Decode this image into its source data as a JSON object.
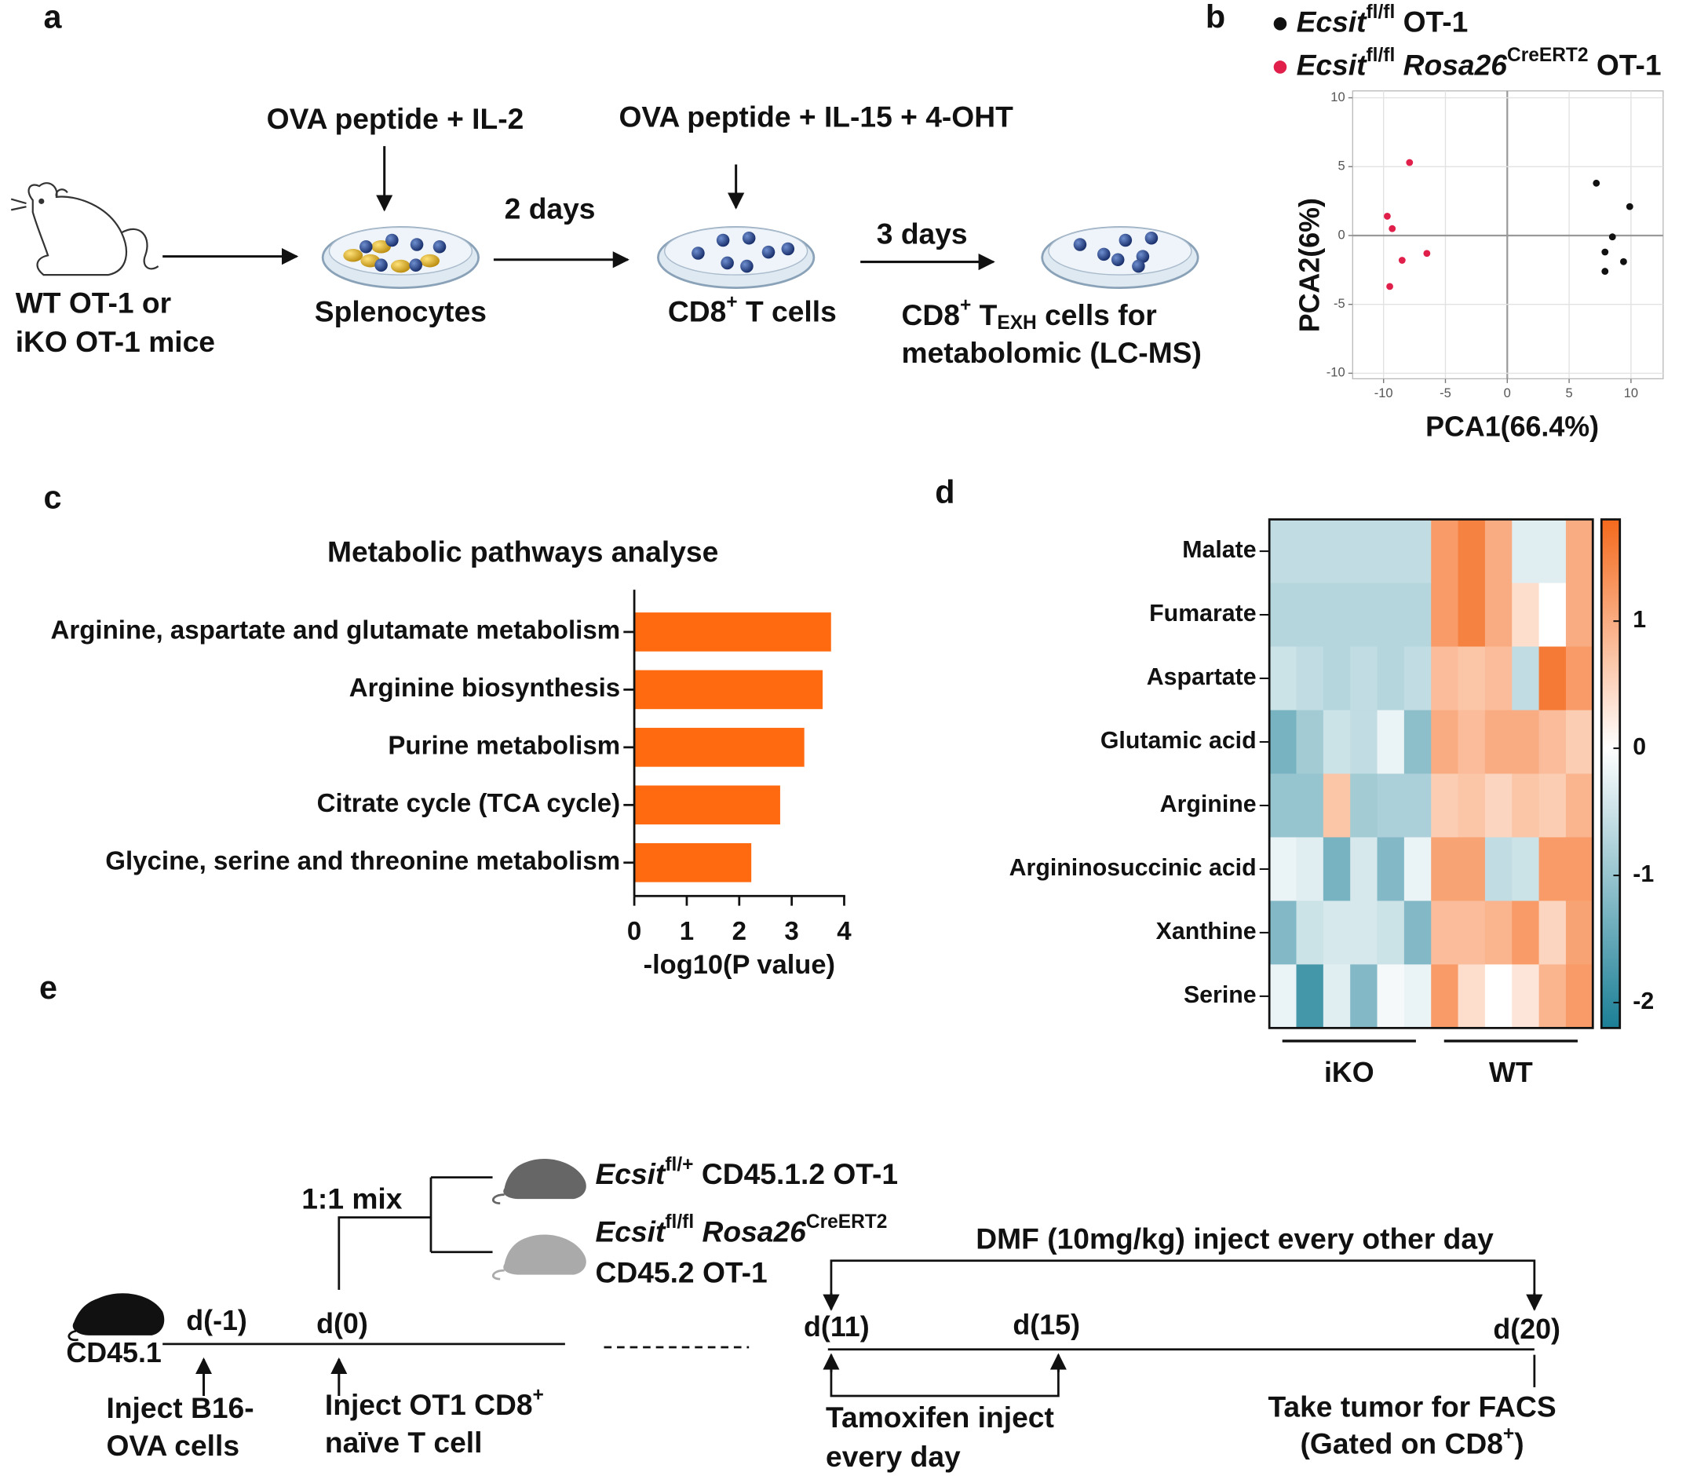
{
  "panel_labels": [
    "a",
    "b",
    "c",
    "d",
    "e"
  ],
  "panel_a": {
    "treatment_1": "OVA peptide + IL-2",
    "treatment_2": "OVA peptide + IL-15 + 4-OHT",
    "interval_1": "2 days",
    "interval_2": "3 days",
    "mice": [
      "WT OT-1 or",
      "iKO OT-1 mice"
    ],
    "splenocytes": "Splenocytes",
    "cd8_cells": [
      {
        "text": "CD8"
      },
      {
        "text": "+",
        "style": "sup"
      },
      {
        "text": " T cells"
      }
    ],
    "texh_cells": [
      {
        "text": "CD8"
      },
      {
        "text": "+",
        "style": "sup"
      },
      {
        "text": " T"
      },
      {
        "text": "EXH",
        "style": "sub"
      },
      {
        "text": " cells for"
      }
    ],
    "metabolomic": "metabolomic (LC-MS)"
  },
  "panel_e": {
    "mix": "1:1 mix",
    "donor_1": [
      {
        "text": "Ecsit",
        "style": "italic"
      },
      {
        "text": "fl/+",
        "style": "sup"
      },
      {
        "text": " CD45.1.2 OT-1"
      }
    ],
    "donor_2": [
      {
        "text": "Ecsit",
        "style": "italic"
      },
      {
        "text": "fl/fl",
        "style": "sup"
      },
      {
        "text": " "
      },
      {
        "text": "Rosa26",
        "style": "italic"
      },
      {
        "text": "CreERT2",
        "style": "sup"
      }
    ],
    "donor_2_line2": "CD45.2 OT-1",
    "host": "CD45.1",
    "days": [
      "d(-1)",
      "d(0)",
      "d(11)",
      "d(15)",
      "d(20)"
    ],
    "dmf": "DMF (10mg/kg) inject every other day",
    "inject_b16": [
      "Inject B16-",
      "OVA cells"
    ],
    "inject_ot1": [
      [
        {
          "text": "Inject OT1 CD8"
        },
        {
          "text": "+",
          "style": "sup"
        }
      ],
      "naïve T cell"
    ],
    "tamoxifen": [
      "Tamoxifen inject",
      "every day"
    ],
    "take_tumor": [
      "Take tumor for FACS",
      [
        {
          "text": "(Gated on CD8"
        },
        {
          "text": "+",
          "style": "sup"
        },
        {
          "text": ")"
        }
      ]
    ]
  },
  "chart_data": [
    {
      "type": "scatter",
      "xlabel": "PCA1(66.4%)",
      "ylabel": "PCA2(6%)",
      "xlim": [
        -12.5,
        12.6
      ],
      "ylim": [
        -10.4,
        10.5
      ],
      "xticks": [
        -10,
        -5,
        0,
        5,
        10
      ],
      "yticks": [
        -10,
        -5,
        0,
        5,
        10
      ],
      "grid": true,
      "series": [
        {
          "name": [
            {
              "text": "Ecsit",
              "style": "italic"
            },
            {
              "text": "fl/fl",
              "style": "sup"
            },
            {
              "text": " OT-1"
            }
          ],
          "color": "#111111",
          "x": [
            7.2,
            9.9,
            8.5,
            7.9,
            9.4,
            7.9
          ],
          "values": [
            3.8,
            2.1,
            -0.1,
            -1.2,
            -1.9,
            -2.6
          ]
        },
        {
          "name": [
            {
              "text": "Ecsit",
              "style": "italic"
            },
            {
              "text": "fl/fl",
              "style": "sup"
            },
            {
              "text": " "
            },
            {
              "text": "Rosa26",
              "style": "italic"
            },
            {
              "text": "CreERT2",
              "style": "sup"
            },
            {
              "text": " OT-1"
            }
          ],
          "color": "#e0204a",
          "x": [
            -7.9,
            -9.7,
            -9.3,
            -8.5,
            -6.5,
            -9.5
          ],
          "values": [
            5.3,
            1.4,
            0.5,
            -1.8,
            -1.3,
            -3.7
          ]
        }
      ]
    },
    {
      "type": "bar",
      "orientation": "horizontal",
      "title": "Metabolic pathways analyse",
      "categories": [
        "Arginine, aspartate and glutamate metabolism",
        "Arginine biosynthesis",
        "Purine metabolism",
        "Citrate cycle (TCA cycle)",
        "Glycine, serine and threonine metabolism"
      ],
      "values": [
        3.75,
        3.59,
        3.24,
        2.78,
        2.23
      ],
      "color": "#ff6a10",
      "xlim": [
        0,
        4
      ],
      "xticks": [
        0,
        1,
        2,
        3,
        4
      ],
      "xlabel": "-log10(P value)"
    },
    {
      "type": "heatmap",
      "rows": [
        "Malate",
        "Fumarate",
        "Aspartate",
        "Glutamic acid",
        "Arginine",
        "Argininosuccinic acid",
        "Xanthine",
        "Serine"
      ],
      "groups": [
        "iKO",
        "WT"
      ],
      "values": [
        [
          -0.6,
          -0.6,
          -0.6,
          -0.6,
          -0.6,
          -0.6,
          1.2,
          1.5,
          1.0,
          -0.3,
          -0.3,
          1.0
        ],
        [
          -0.7,
          -0.7,
          -0.7,
          -0.7,
          -0.7,
          -0.7,
          1.2,
          1.5,
          1.0,
          0.4,
          0.0,
          1.0
        ],
        [
          -0.5,
          -0.6,
          -0.7,
          -0.6,
          -0.7,
          -0.6,
          0.8,
          0.7,
          0.8,
          -0.6,
          1.6,
          1.2
        ],
        [
          -1.3,
          -0.9,
          -0.5,
          -0.6,
          -0.2,
          -1.1,
          1.0,
          0.8,
          1.0,
          1.0,
          0.8,
          0.6
        ],
        [
          -1.0,
          -1.0,
          0.7,
          -0.9,
          -0.8,
          -0.8,
          0.6,
          0.7,
          0.5,
          0.7,
          0.6,
          0.9
        ],
        [
          -0.2,
          -0.3,
          -1.3,
          -0.4,
          -1.2,
          -0.2,
          1.1,
          1.1,
          -0.6,
          -0.5,
          1.2,
          1.2
        ],
        [
          -1.2,
          -0.5,
          -0.4,
          -0.4,
          -0.5,
          -1.2,
          0.8,
          0.8,
          0.9,
          1.2,
          0.5,
          1.1
        ],
        [
          -0.2,
          -1.8,
          -0.3,
          -1.2,
          -0.1,
          -0.2,
          1.2,
          0.4,
          0.0,
          0.3,
          0.9,
          1.2
        ]
      ],
      "zlim": [
        -2.2,
        1.8
      ],
      "zticks": [
        1,
        0,
        -1,
        -2
      ],
      "colors": {
        "low": "#1b7f96",
        "mid": "#ffffff",
        "high": "#f4691c"
      }
    }
  ]
}
